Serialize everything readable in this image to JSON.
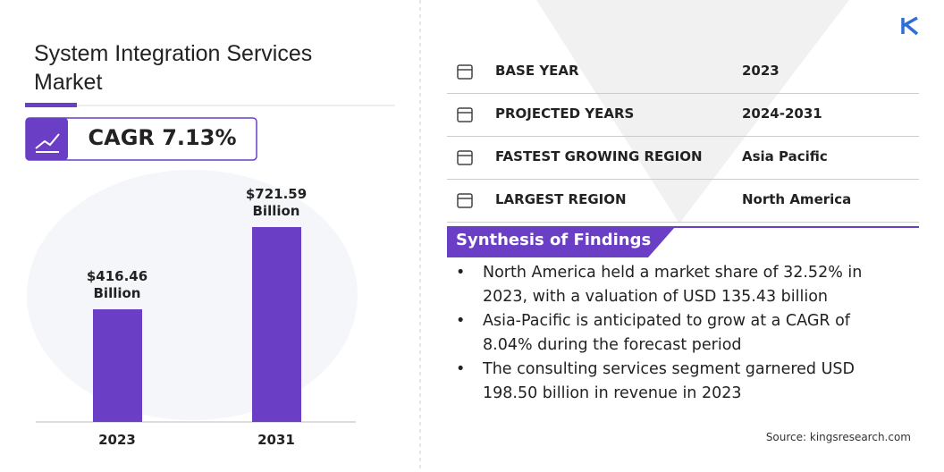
{
  "header": {
    "title": "System Integration Services Market",
    "cagr": "CAGR 7.13%"
  },
  "chart_data": {
    "type": "bar",
    "categories": [
      "2023",
      "2031"
    ],
    "values": [
      416.46,
      721.59
    ],
    "value_labels": [
      "$416.46 Billion",
      "$721.59 Billion"
    ],
    "color": "#6a3fc6"
  },
  "table": {
    "rows": [
      [
        "BASE YEAR",
        "2023"
      ],
      [
        "PROJECTED YEARS",
        "2024-2031"
      ],
      [
        "FASTEST GROWING REGION",
        "Asia Pacific"
      ],
      [
        "LARGEST REGION",
        "North America"
      ]
    ]
  },
  "findings": {
    "title": "Synthesis of Findings",
    "items": [
      "North America held a market share of 32.52% in 2023, with a valuation of USD 135.43 billion",
      "Asia-Pacific is anticipated to grow at a CAGR of 8.04% during the forecast period",
      "The consulting services segment garnered USD 198.50 billion in revenue in 2023"
    ]
  },
  "source": "Source: kingsresearch.com"
}
